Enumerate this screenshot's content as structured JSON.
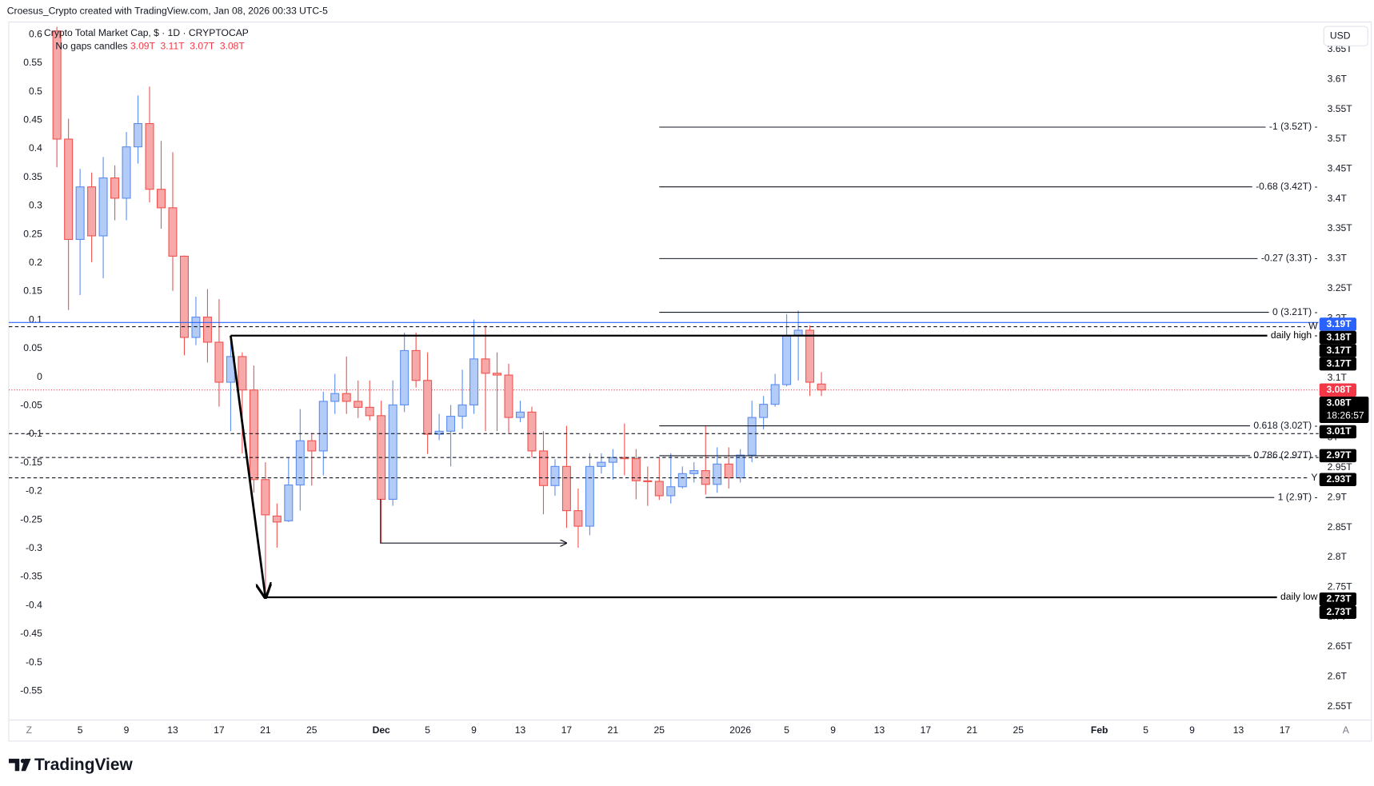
{
  "header": {
    "caption": "Croesus_Crypto created with TradingView.com, Jan 08, 2026 00:33 UTC-5",
    "symbol": "Crypto Total Market Cap, $ · 1D · CRYPTOCAP",
    "candle_mode": "No gaps candles",
    "ohlc": [
      "3.09T",
      "3.11T",
      "3.07T",
      "3.08T"
    ]
  },
  "ui": {
    "currency": "USD",
    "axis_left_icon": "Z",
    "axis_right_icon": "A",
    "brand": "TradingView"
  },
  "chart_data": {
    "type": "candlestick",
    "x": [
      "2025-11-03",
      "2025-11-04",
      "2025-11-05",
      "2025-11-06",
      "2025-11-07",
      "2025-11-08",
      "2025-11-09",
      "2025-11-10",
      "2025-11-11",
      "2025-11-12",
      "2025-11-13",
      "2025-11-14",
      "2025-11-15",
      "2025-11-16",
      "2025-11-17",
      "2025-11-18",
      "2025-11-19",
      "2025-11-20",
      "2025-11-21",
      "2025-11-22",
      "2025-11-23",
      "2025-11-24",
      "2025-11-25",
      "2025-11-26",
      "2025-11-27",
      "2025-11-28",
      "2025-11-29",
      "2025-11-30",
      "2025-12-01",
      "2025-12-02",
      "2025-12-03",
      "2025-12-04",
      "2025-12-05",
      "2025-12-06",
      "2025-12-07",
      "2025-12-08",
      "2025-12-09",
      "2025-12-10",
      "2025-12-11",
      "2025-12-12",
      "2025-12-13",
      "2025-12-14",
      "2025-12-15",
      "2025-12-16",
      "2025-12-17",
      "2025-12-18",
      "2025-12-19",
      "2025-12-20",
      "2025-12-21",
      "2025-12-22",
      "2025-12-23",
      "2025-12-24",
      "2025-12-25",
      "2025-12-26",
      "2025-12-27",
      "2025-12-28",
      "2025-12-29",
      "2025-12-30",
      "2025-12-31",
      "2026-01-01",
      "2026-01-02",
      "2026-01-03",
      "2026-01-04",
      "2026-01-05",
      "2026-01-06",
      "2026-01-07",
      "2026-01-08"
    ],
    "open": [
      3.681,
      3.5,
      3.332,
      3.42,
      3.338,
      3.435,
      3.401,
      3.487,
      3.526,
      3.416,
      3.385,
      3.304,
      3.168,
      3.202,
      3.16,
      3.093,
      3.136,
      3.08,
      2.93,
      2.869,
      2.861,
      2.921,
      2.995,
      2.978,
      3.061,
      3.074,
      3.061,
      3.051,
      3.037,
      2.897,
      3.055,
      3.146,
      3.096,
      3.006,
      3.011,
      3.036,
      3.055,
      3.132,
      3.108,
      3.105,
      3.034,
      3.043,
      2.978,
      2.92,
      2.952,
      2.878,
      2.852,
      2.952,
      2.959,
      2.967,
      2.965,
      2.928,
      2.927,
      2.903,
      2.918,
      2.94,
      2.945,
      2.922,
      2.956,
      2.933,
      2.971,
      3.034,
      3.056,
      3.089,
      3.171,
      3.18,
      3.09
    ],
    "high": [
      3.688,
      3.534,
      3.45,
      3.444,
      3.47,
      3.456,
      3.512,
      3.573,
      3.588,
      3.497,
      3.478,
      3.305,
      3.236,
      3.249,
      3.232,
      3.165,
      3.143,
      3.121,
      2.959,
      2.89,
      2.967,
      3.048,
      3.008,
      3.077,
      3.107,
      3.136,
      3.096,
      3.096,
      3.062,
      3.096,
      3.176,
      3.176,
      3.143,
      3.04,
      3.055,
      3.114,
      3.198,
      3.188,
      3.143,
      3.124,
      3.062,
      3.052,
      3.011,
      2.964,
      3.02,
      2.915,
      2.974,
      2.974,
      2.981,
      3.024,
      2.981,
      2.952,
      2.967,
      2.974,
      2.952,
      2.959,
      3.021,
      2.984,
      2.984,
      2.981,
      3.062,
      3.07,
      3.107,
      3.207,
      3.213,
      3.188,
      3.11
    ],
    "low": [
      3.453,
      3.214,
      3.239,
      3.294,
      3.267,
      3.364,
      3.364,
      3.459,
      3.394,
      3.35,
      3.246,
      3.138,
      3.155,
      3.126,
      3.052,
      3.011,
      2.974,
      2.908,
      2.733,
      2.816,
      2.859,
      2.878,
      2.92,
      2.937,
      3.04,
      3.04,
      3.033,
      3.029,
      2.824,
      2.886,
      3.043,
      3.084,
      2.973,
      2.996,
      2.952,
      3.015,
      3.04,
      3.011,
      3.011,
      3.008,
      3.026,
      2.967,
      2.872,
      2.903,
      2.849,
      2.816,
      2.837,
      2.94,
      2.93,
      2.937,
      2.897,
      2.886,
      2.896,
      2.89,
      2.915,
      2.925,
      2.905,
      2.908,
      2.915,
      2.925,
      2.959,
      3.014,
      3.052,
      3.086,
      3.096,
      3.07,
      3.07
    ],
    "close": [
      3.5,
      3.332,
      3.42,
      3.338,
      3.435,
      3.401,
      3.487,
      3.526,
      3.416,
      3.385,
      3.304,
      3.168,
      3.202,
      3.16,
      3.093,
      3.136,
      3.08,
      2.93,
      2.871,
      2.859,
      2.921,
      2.995,
      2.978,
      3.061,
      3.074,
      3.061,
      3.051,
      3.037,
      2.897,
      3.055,
      3.146,
      3.096,
      3.006,
      3.011,
      3.036,
      3.055,
      3.132,
      3.108,
      3.105,
      3.034,
      3.043,
      2.978,
      2.92,
      2.952,
      2.878,
      2.852,
      2.952,
      2.959,
      2.967,
      2.965,
      2.928,
      2.927,
      2.903,
      2.918,
      2.94,
      2.945,
      2.922,
      2.956,
      2.933,
      2.971,
      3.034,
      3.056,
      3.089,
      3.171,
      3.18,
      3.093,
      3.08
    ],
    "up_color": "#5b8def",
    "up_fill": "#b3cbf7",
    "down_color": "#ef5350",
    "down_fill": "#f6a9a8",
    "current_price_color": "#f23645",
    "xlim": [
      "2025-10-30",
      "2026-02-19"
    ],
    "xticks": [
      {
        "value": "2025-11-05",
        "label": "5"
      },
      {
        "value": "2025-11-09",
        "label": "9"
      },
      {
        "value": "2025-11-13",
        "label": "13"
      },
      {
        "value": "2025-11-17",
        "label": "17"
      },
      {
        "value": "2025-11-21",
        "label": "21"
      },
      {
        "value": "2025-11-25",
        "label": "25"
      },
      {
        "value": "2025-12-01",
        "label": "Dec"
      },
      {
        "value": "2025-12-05",
        "label": "5"
      },
      {
        "value": "2025-12-09",
        "label": "9"
      },
      {
        "value": "2025-12-13",
        "label": "13"
      },
      {
        "value": "2025-12-17",
        "label": "17"
      },
      {
        "value": "2025-12-21",
        "label": "21"
      },
      {
        "value": "2025-12-25",
        "label": "25"
      },
      {
        "value": "2026-01-01",
        "label": "2026"
      },
      {
        "value": "2026-01-05",
        "label": "5"
      },
      {
        "value": "2026-01-09",
        "label": "9"
      },
      {
        "value": "2026-01-13",
        "label": "13"
      },
      {
        "value": "2026-01-17",
        "label": "17"
      },
      {
        "value": "2026-01-21",
        "label": "21"
      },
      {
        "value": "2026-01-25",
        "label": "25"
      },
      {
        "value": "2026-02-01",
        "label": "Feb"
      },
      {
        "value": "2026-02-05",
        "label": "5"
      },
      {
        "value": "2026-02-09",
        "label": "9"
      },
      {
        "value": "2026-02-13",
        "label": "13"
      },
      {
        "value": "2026-02-17",
        "label": "17"
      }
    ],
    "ylim": [
      2.532,
      3.696
    ],
    "yticks": [
      {
        "value": 2.55,
        "label": "2.55T"
      },
      {
        "value": 2.6,
        "label": "2.6T"
      },
      {
        "value": 2.65,
        "label": "2.65T"
      },
      {
        "value": 2.7,
        "label": "2.7T"
      },
      {
        "value": 2.75,
        "label": "2.75T"
      },
      {
        "value": 2.8,
        "label": "2.8T"
      },
      {
        "value": 2.85,
        "label": "2.85T"
      },
      {
        "value": 2.9,
        "label": "2.9T"
      },
      {
        "value": 2.95,
        "label": "2.95T"
      },
      {
        "value": 3.0,
        "label": "3T"
      },
      {
        "value": 3.05,
        "label": "3.05T"
      },
      {
        "value": 3.1,
        "label": "3.1T"
      },
      {
        "value": 3.15,
        "label": "3.15T"
      },
      {
        "value": 3.2,
        "label": "3.2T"
      },
      {
        "value": 3.25,
        "label": "3.25T"
      },
      {
        "value": 3.3,
        "label": "3.3T"
      },
      {
        "value": 3.35,
        "label": "3.35T"
      },
      {
        "value": 3.4,
        "label": "3.4T"
      },
      {
        "value": 3.45,
        "label": "3.45T"
      },
      {
        "value": 3.5,
        "label": "3.5T"
      },
      {
        "value": 3.55,
        "label": "3.55T"
      },
      {
        "value": 3.6,
        "label": "3.6T"
      },
      {
        "value": 3.65,
        "label": "3.65T"
      }
    ],
    "y2lim": [
      -0.596,
      0.622
    ],
    "y2ticks": [
      0.6,
      0.55,
      0.5,
      0.45,
      0.4,
      0.35,
      0.3,
      0.25,
      0.2,
      0.15,
      0.1,
      0.05,
      0,
      -0.05,
      -0.1,
      -0.15,
      -0.2,
      -0.25,
      -0.3,
      -0.35,
      -0.4,
      -0.45,
      -0.5,
      -0.55
    ],
    "grid": false,
    "levels": [
      {
        "label": "-1 (3.52T) -",
        "value": 3.52,
        "start": "2025-12-25",
        "color": "#131722",
        "style": "solid",
        "width": 1
      },
      {
        "label": "-0.68 (3.42T) -",
        "value": 3.42,
        "start": "2025-12-25",
        "color": "#131722",
        "style": "solid",
        "width": 1
      },
      {
        "label": "-0.27 (3.3T) -",
        "value": 3.3,
        "start": "2025-12-25",
        "color": "#131722",
        "style": "solid",
        "width": 1
      },
      {
        "label": "0 (3.21T) -",
        "value": 3.21,
        "start": "2025-12-25",
        "color": "#131722",
        "style": "solid",
        "width": 1
      },
      {
        "value": 3.193,
        "color": "#2962ff",
        "style": "solid",
        "width": 1
      },
      {
        "label": "W",
        "value": 3.186,
        "color": "#131722",
        "style": "dashed",
        "width": 1
      },
      {
        "label": "daily high -",
        "value": 3.171,
        "start": "2025-11-18",
        "color": "#000000",
        "style": "solid",
        "width": 2
      },
      {
        "label": "0.618 (3.02T) -",
        "value": 3.02,
        "start": "2025-12-25",
        "color": "#131722",
        "style": "solid",
        "width": 1
      },
      {
        "value": 3.007,
        "color": "#131722",
        "style": "dashed",
        "width": 1
      },
      {
        "label": "0.786 (2.97T) -",
        "value": 2.97,
        "start": "2025-12-25",
        "color": "#131722",
        "style": "solid",
        "width": 1
      },
      {
        "value": 2.967,
        "color": "#131722",
        "style": "dashed",
        "width": 1
      },
      {
        "label": "Y",
        "value": 2.933,
        "color": "#131722",
        "style": "dashed",
        "width": 1
      },
      {
        "label": "1 (2.9T) -",
        "value": 2.9,
        "start": "2025-12-29",
        "color": "#131722",
        "style": "solid",
        "width": 1
      },
      {
        "label": "daily low",
        "value": 2.733,
        "start": "2025-11-21",
        "color": "#000000",
        "style": "solid",
        "width": 2
      }
    ],
    "badges": [
      {
        "label": "3.19T",
        "value": 3.19,
        "color": "#2962ff"
      },
      {
        "label": "3.18T",
        "value": 3.18,
        "color": "#000000"
      },
      {
        "label": "3.17T",
        "value": 3.17,
        "color": "#000000"
      },
      {
        "label": "3.17T",
        "value": 3.17,
        "color": "#000000"
      },
      {
        "label": "3.08T",
        "value": 3.08,
        "color": "#f23645"
      },
      {
        "label": "3.08T",
        "value": 3.08,
        "color": "#000000",
        "sub": "18:26:57"
      },
      {
        "label": "3.01T",
        "value": 3.01,
        "color": "#000000"
      },
      {
        "label": "2.97T",
        "value": 2.97,
        "color": "#000000"
      },
      {
        "label": "2.93T",
        "value": 2.93,
        "color": "#000000"
      },
      {
        "label": "2.73T",
        "value": 2.73,
        "color": "#000000"
      },
      {
        "label": "2.73T",
        "value": 2.73,
        "color": "#000000"
      }
    ]
  }
}
